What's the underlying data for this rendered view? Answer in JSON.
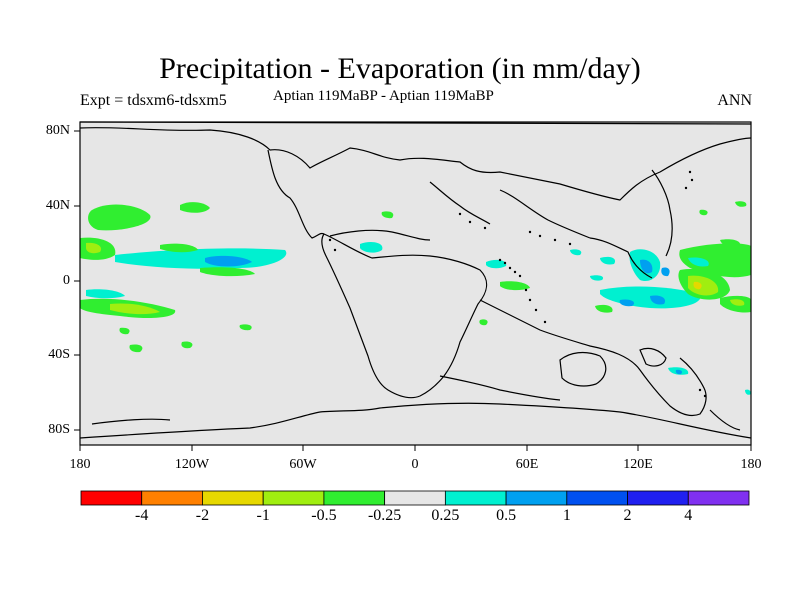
{
  "title": "Precipitation - Evaporation (in mm/day)",
  "experiment": "Expt = tdsxm6-tdsxm5",
  "period": "Aptian   119MaBP - Aptian   119MaBP",
  "season": "ANN",
  "lat_ticks": [
    "80N",
    "40N",
    "0",
    "40S",
    "80S"
  ],
  "lon_ticks": [
    "180",
    "120W",
    "60W",
    "0",
    "60E",
    "120E",
    "180"
  ],
  "colorbar": {
    "colors": [
      "#ff0000",
      "#ff8000",
      "#e6d800",
      "#a0ee10",
      "#30ee30",
      "#e6e6e6",
      "#00f0d0",
      "#00a0f0",
      "#0050f0",
      "#2020f0",
      "#8030f0"
    ],
    "labels": [
      "-4",
      "-2",
      "-1",
      "-0.5",
      "-0.25",
      "0.25",
      "0.5",
      "1",
      "2",
      "4"
    ]
  },
  "colors": {
    "land_background": "#e6e6e6",
    "coast": "#000000"
  }
}
